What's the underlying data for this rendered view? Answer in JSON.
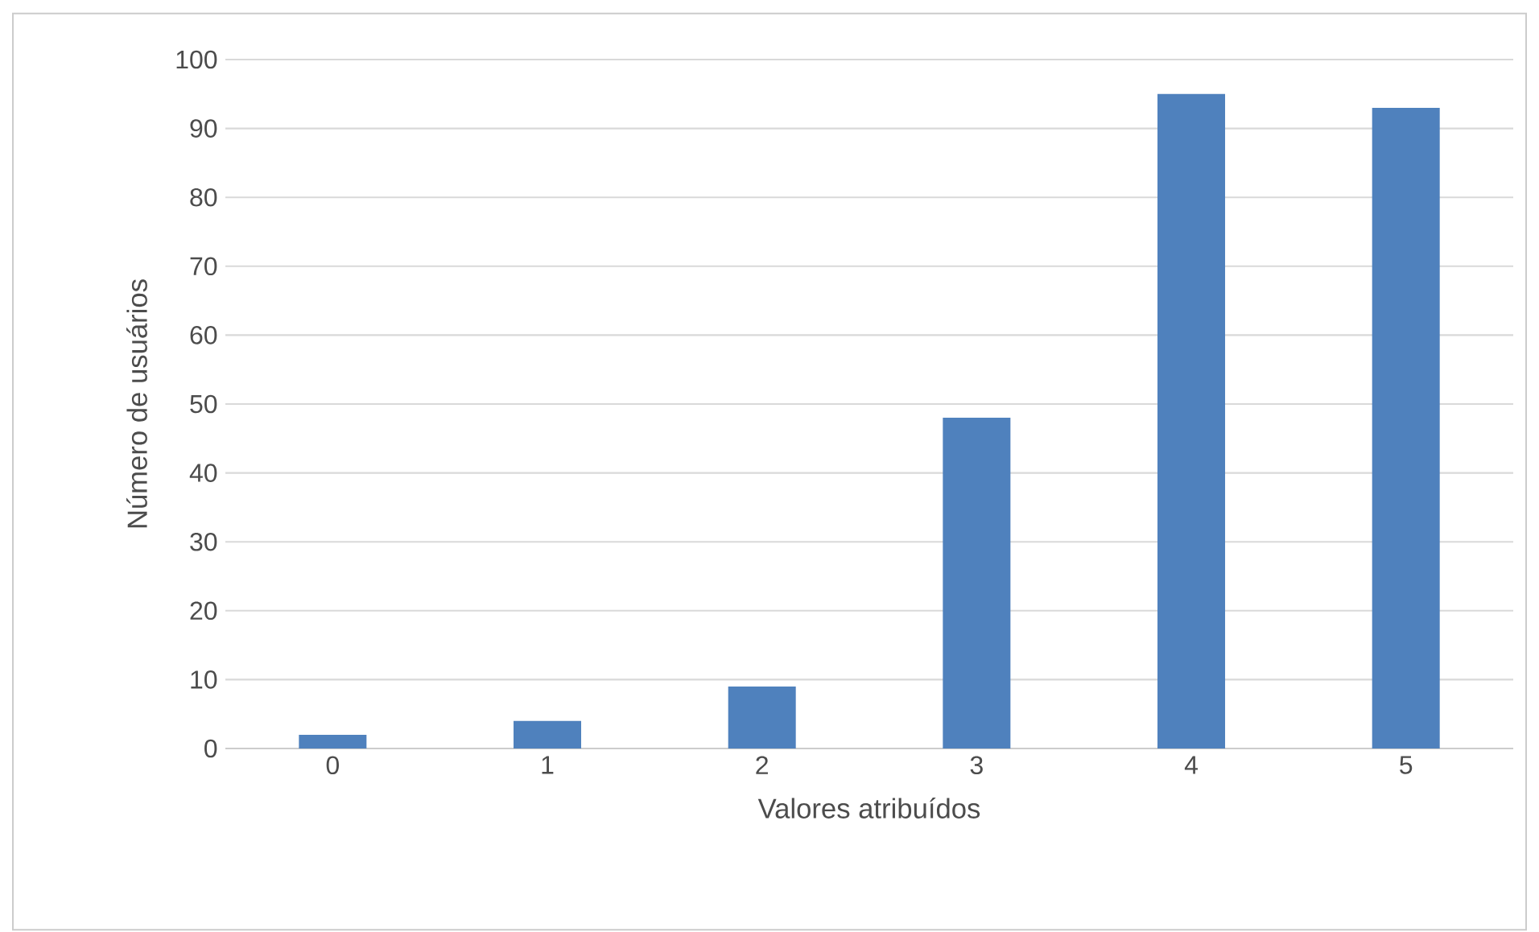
{
  "chart_data": {
    "type": "bar",
    "xlabel": "Valores atribuídos",
    "ylabel": "Número de usuários",
    "categories": [
      "0",
      "1",
      "2",
      "3",
      "4",
      "5"
    ],
    "values": [
      2,
      4,
      9,
      48,
      95,
      93
    ],
    "color": "#4f81bd",
    "ylim": [
      0,
      100
    ],
    "yticks": [
      0,
      10,
      20,
      30,
      40,
      50,
      60,
      70,
      80,
      90,
      100
    ],
    "grid": "y"
  }
}
